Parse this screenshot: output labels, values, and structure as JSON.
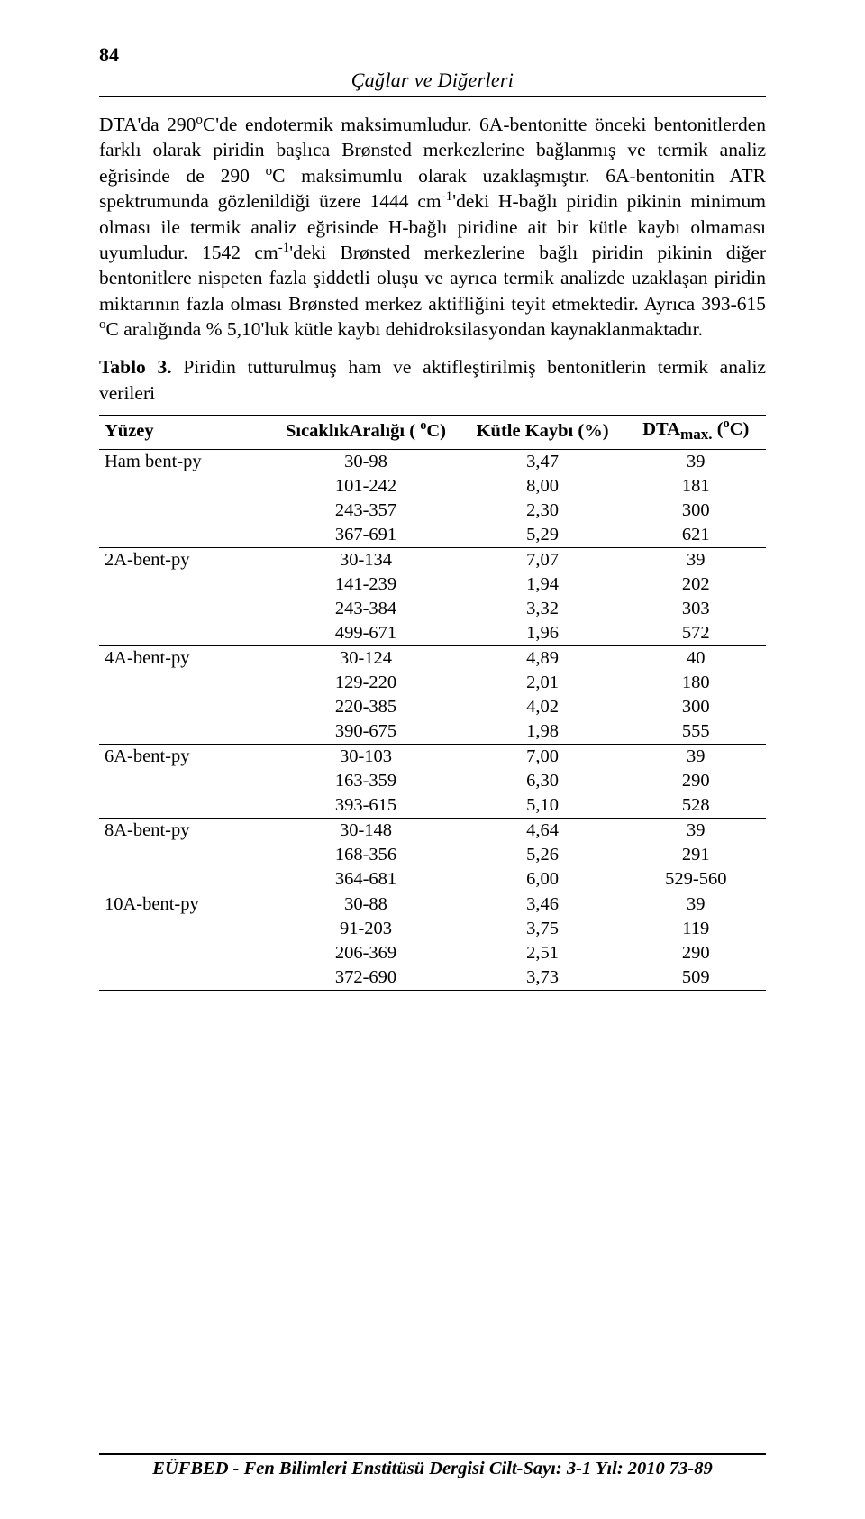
{
  "page_number": "84",
  "running_head": "Çağlar ve Diğerleri",
  "body_html": "DTA'da 290<span class='sup'>o</span>C'de endotermik maksimumludur. 6A-bentonitte önceki bentonitlerden farklı olarak piridin başlıca Brønsted merkezlerine bağlanmış ve termik analiz eğrisinde de 290 <span class='sup'>o</span>C maksimumlu olarak uzaklaşmıştır. 6A-bentonitin ATR spektrumunda gözlenildiği üzere 1444 cm<span class='sup'>-1</span>'deki H-bağlı piridin pikinin minimum olması ile termik analiz eğrisinde H-bağlı piridine ait bir kütle kaybı olmaması uyumludur. 1542 cm<span class='sup'>-1</span>'deki Brønsted merkezlerine bağlı piridin pikinin diğer bentonitlere nispeten fazla şiddetli oluşu ve ayrıca termik analizde uzaklaşan piridin miktarının fazla olması Brønsted merkez aktifliğini teyit etmektedir. Ayrıca 393-615 <span class='sup'>o</span>C aralığında % 5,10'luk kütle kaybı dehidroksilasyondan kaynaklanmaktadır.",
  "table_caption_html": "<span class='bold'>Tablo 3.</span> Piridin tutturulmuş ham ve aktifleştirilmiş bentonitlerin termik analiz verileri",
  "table": {
    "headers_html": [
      "Yüzey",
      "SıcaklıkAralığı ( <span class='sup'>o</span>C)",
      "Kütle Kaybı (%)",
      "DTA<sub>max.</sub> (<span class='sup'>o</span>C)"
    ],
    "groups": [
      {
        "surface": "Ham bent-py",
        "ranges": [
          "30-98",
          "101-242",
          "243-357",
          "367-691"
        ],
        "mass": [
          "3,47",
          "8,00",
          "2,30",
          "5,29"
        ],
        "dta": [
          "39",
          "181",
          "300",
          "621"
        ]
      },
      {
        "surface": "2A-bent-py",
        "ranges": [
          "30-134",
          "141-239",
          "243-384",
          "499-671"
        ],
        "mass": [
          "7,07",
          "1,94",
          "3,32",
          "1,96"
        ],
        "dta": [
          "39",
          "202",
          "303",
          "572"
        ]
      },
      {
        "surface": "4A-bent-py",
        "ranges": [
          "30-124",
          "129-220",
          "220-385",
          "390-675"
        ],
        "mass": [
          "4,89",
          "2,01",
          "4,02",
          "1,98"
        ],
        "dta": [
          "40",
          "180",
          "300",
          "555"
        ]
      },
      {
        "surface": "6A-bent-py",
        "ranges": [
          "30-103",
          "163-359",
          "393-615"
        ],
        "mass": [
          "7,00",
          "6,30",
          "5,10"
        ],
        "dta": [
          "39",
          "290",
          "528"
        ]
      },
      {
        "surface": "8A-bent-py",
        "ranges": [
          "30-148",
          "168-356",
          "364-681"
        ],
        "mass": [
          "4,64",
          "5,26",
          "6,00"
        ],
        "dta": [
          "39",
          "291",
          "529-560"
        ]
      },
      {
        "surface": "10A-bent-py",
        "ranges": [
          "30-88",
          "91-203",
          "206-369",
          "372-690"
        ],
        "mass": [
          "3,46",
          "3,75",
          "2,51",
          "3,73"
        ],
        "dta": [
          "39",
          "119",
          "290",
          "509"
        ]
      }
    ]
  },
  "footer": "EÜFBED - Fen Bilimleri Enstitüsü Dergisi Cilt-Sayı: 3-1 Yıl: 2010 73-89"
}
